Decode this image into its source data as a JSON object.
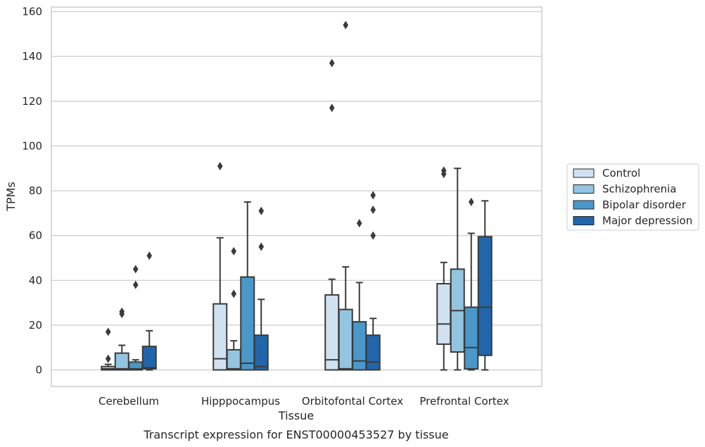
{
  "chart_data": {
    "type": "box",
    "xlabel": "Tissue",
    "ylabel": "TPMs",
    "caption": "Transcript expression for ENST00000453527 by tissue",
    "ylim": [
      -7.5,
      161.5
    ],
    "yticks": [
      0,
      20,
      40,
      60,
      80,
      100,
      120,
      140,
      160
    ],
    "grid": "horizontal",
    "legend_position": "right",
    "categories": [
      "Cerebellum",
      "Hipppocampus",
      "Orbitofontal Cortex",
      "Prefrontal Cortex"
    ],
    "series": [
      {
        "name": "Control",
        "color": "#d0e1f2",
        "boxes": [
          {
            "whislo": 0,
            "q1": 0,
            "med": 0.5,
            "q3": 1.5,
            "whishi": 2.5,
            "fliers": [
              5,
              17
            ]
          },
          {
            "whislo": 0,
            "q1": 0,
            "med": 5,
            "q3": 29.5,
            "whishi": 59,
            "fliers": [
              91
            ]
          },
          {
            "whislo": 0,
            "q1": 0,
            "med": 4.5,
            "q3": 33.5,
            "whishi": 40.5,
            "fliers": [
              117,
              137
            ]
          },
          {
            "whislo": 0,
            "q1": 11.5,
            "med": 20.5,
            "q3": 38.5,
            "whishi": 48,
            "fliers": [
              87.5,
              89
            ]
          }
        ]
      },
      {
        "name": "Schizophrenia",
        "color": "#94c4df",
        "boxes": [
          {
            "whislo": 0,
            "q1": 0,
            "med": 0.5,
            "q3": 7.5,
            "whishi": 11,
            "fliers": [
              25,
              26
            ]
          },
          {
            "whislo": 0,
            "q1": 0,
            "med": 0.5,
            "q3": 9,
            "whishi": 13,
            "fliers": [
              34,
              53
            ]
          },
          {
            "whislo": 0,
            "q1": 0,
            "med": 0.5,
            "q3": 27,
            "whishi": 46,
            "fliers": [
              154
            ]
          },
          {
            "whislo": 0,
            "q1": 8,
            "med": 26.5,
            "q3": 45,
            "whishi": 90,
            "fliers": []
          }
        ]
      },
      {
        "name": "Bipolar disorder",
        "color": "#4a98c9",
        "boxes": [
          {
            "whislo": 0,
            "q1": 0,
            "med": 0.5,
            "q3": 3.5,
            "whishi": 4.5,
            "fliers": [
              38,
              45
            ]
          },
          {
            "whislo": 0,
            "q1": 0,
            "med": 3,
            "q3": 41.5,
            "whishi": 75,
            "fliers": []
          },
          {
            "whislo": 0,
            "q1": 0,
            "med": 4,
            "q3": 21.5,
            "whishi": 39,
            "fliers": [
              65.5
            ]
          },
          {
            "whislo": 0,
            "q1": 0.5,
            "med": 10,
            "q3": 28,
            "whishi": 61,
            "fliers": [
              75
            ]
          }
        ]
      },
      {
        "name": "Major depression",
        "color": "#2166ac",
        "boxes": [
          {
            "whislo": 0,
            "q1": 0.5,
            "med": 1,
            "q3": 10.5,
            "whishi": 17.5,
            "fliers": [
              51
            ]
          },
          {
            "whislo": 0,
            "q1": 0,
            "med": 1.5,
            "q3": 15.5,
            "whishi": 31.5,
            "fliers": [
              55,
              71
            ]
          },
          {
            "whislo": 0,
            "q1": 0,
            "med": 3.5,
            "q3": 15.5,
            "whishi": 23,
            "fliers": [
              60,
              71.5,
              78
            ]
          },
          {
            "whislo": 0,
            "q1": 6.5,
            "med": 28,
            "q3": 59.5,
            "whishi": 75.5,
            "fliers": []
          }
        ]
      }
    ]
  }
}
